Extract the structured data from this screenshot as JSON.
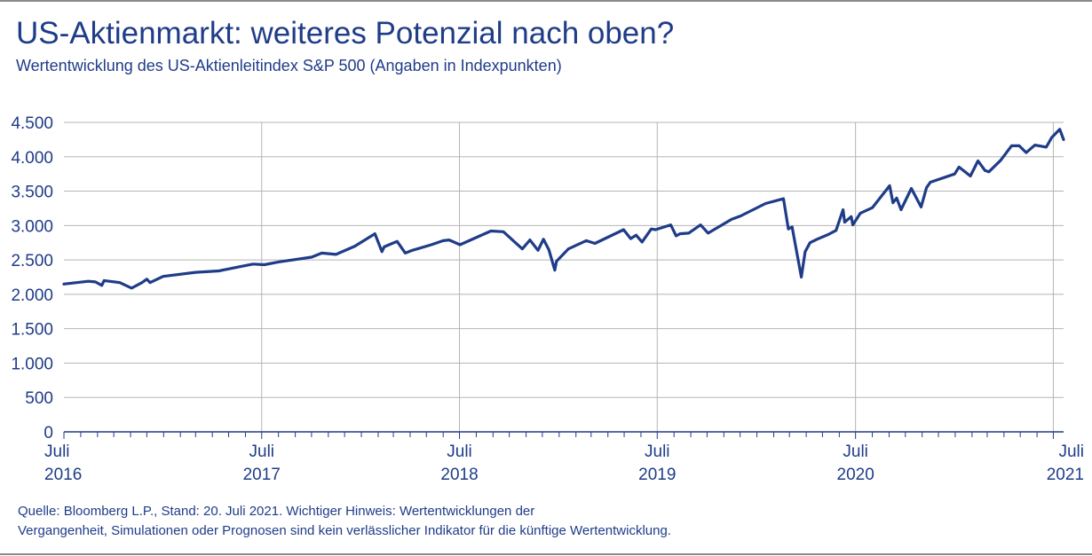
{
  "header": {
    "title": "US-Aktienmarkt: weiteres Potenzial nach oben?",
    "subtitle": "Wertentwicklung des US-Aktienleitindex S&P 500 (Angaben in Indexpunkten)"
  },
  "footer": {
    "line1": "Quelle: Bloomberg L.P., Stand: 20. Juli 2021. Wichtiger Hinweis: Wertentwicklungen der",
    "line2": "Vergangenheit, Simulationen oder Prognosen sind kein verlässlicher Indikator für die künftige Wertentwicklung."
  },
  "colors": {
    "line": "#1f3c88",
    "text": "#1f3c88",
    "grid": "#b5b5b5",
    "axis": "#1f3c88"
  },
  "chart_data": {
    "type": "line",
    "title": "US-Aktienmarkt: weiteres Potenzial nach oben?",
    "subtitle": "Wertentwicklung des US-Aktienleitindex S&P 500 (Angaben in Indexpunkten)",
    "xlabel": "",
    "ylabel": "",
    "ylim": [
      0,
      4500
    ],
    "xlim": [
      "2016-07-01",
      "2021-07-20"
    ],
    "yticks": [
      0,
      500,
      1000,
      1500,
      2000,
      2500,
      3000,
      3500,
      4000,
      4500
    ],
    "ytick_labels": [
      "0",
      "500",
      "1.000",
      "1.500",
      "2.000",
      "2.500",
      "3.000",
      "3.500",
      "4.000",
      "4.500"
    ],
    "xtick_labels": [
      {
        "date": "2016-07-01",
        "line1": "Juli",
        "line2": "2016"
      },
      {
        "date": "2017-07-01",
        "line1": "Juli",
        "line2": "2017"
      },
      {
        "date": "2018-07-01",
        "line1": "Juli",
        "line2": "2018"
      },
      {
        "date": "2019-07-01",
        "line1": "Juli",
        "line2": "2019"
      },
      {
        "date": "2020-07-01",
        "line1": "Juli",
        "line2": "2020"
      },
      {
        "date": "2021-07-01",
        "line1": "Juli",
        "line2": "2021"
      }
    ],
    "grid": {
      "vertical": true,
      "horizontal": true
    },
    "legend": "none",
    "series": [
      {
        "name": "",
        "x": [
          "2016-07-01",
          "2016-08-15",
          "2016-08-28",
          "2016-09-09",
          "2016-09-13",
          "2016-10-12",
          "2016-11-03",
          "2016-11-22",
          "2016-12-01",
          "2016-12-07",
          "2016-12-31",
          "2017-03-01",
          "2017-04-13",
          "2017-05-20",
          "2017-06-15",
          "2017-07-06",
          "2017-08-01",
          "2017-10-01",
          "2017-10-20",
          "2017-11-15",
          "2017-12-20",
          "2018-01-26",
          "2018-02-08",
          "2018-02-12",
          "2018-02-27",
          "2018-03-08",
          "2018-03-23",
          "2018-04-05",
          "2018-05-10",
          "2018-06-01",
          "2018-06-12",
          "2018-07-02",
          "2018-08-28",
          "2018-09-20",
          "2018-10-25",
          "2018-11-08",
          "2018-11-23",
          "2018-12-03",
          "2018-12-13",
          "2018-12-24",
          "2018-12-27",
          "2019-01-18",
          "2019-02-20",
          "2019-03-08",
          "2019-04-30",
          "2019-05-13",
          "2019-05-23",
          "2019-06-03",
          "2019-06-20",
          "2019-06-28",
          "2019-07-26",
          "2019-08-05",
          "2019-08-12",
          "2019-08-28",
          "2019-09-19",
          "2019-10-03",
          "2019-11-15",
          "2019-12-02",
          "2020-01-17",
          "2020-02-19",
          "2020-02-28",
          "2020-03-06",
          "2020-03-23",
          "2020-03-30",
          "2020-04-08",
          "2020-04-21",
          "2020-05-12",
          "2020-05-26",
          "2020-06-08",
          "2020-06-11",
          "2020-06-23",
          "2020-06-26",
          "2020-07-10",
          "2020-08-01",
          "2020-09-02",
          "2020-09-08",
          "2020-09-15",
          "2020-09-23",
          "2020-10-12",
          "2020-10-30",
          "2020-11-09",
          "2020-11-16",
          "2020-12-31",
          "2021-01-08",
          "2021-01-29",
          "2021-02-12",
          "2021-02-25",
          "2021-03-04",
          "2021-03-26",
          "2021-04-15",
          "2021-04-29",
          "2021-05-12",
          "2021-05-28",
          "2021-06-18",
          "2021-06-28",
          "2021-07-13",
          "2021-07-20"
        ],
        "values": [
          2150,
          2190,
          2180,
          2130,
          2200,
          2170,
          2090,
          2170,
          2220,
          2170,
          2260,
          2320,
          2340,
          2400,
          2440,
          2430,
          2470,
          2540,
          2600,
          2580,
          2700,
          2880,
          2620,
          2690,
          2740,
          2770,
          2600,
          2640,
          2720,
          2780,
          2790,
          2720,
          2920,
          2910,
          2660,
          2790,
          2640,
          2800,
          2650,
          2350,
          2480,
          2660,
          2780,
          2740,
          2940,
          2810,
          2860,
          2760,
          2950,
          2940,
          3010,
          2850,
          2880,
          2890,
          3010,
          2890,
          3090,
          3140,
          3320,
          3390,
          2950,
          2980,
          2250,
          2620,
          2750,
          2800,
          2870,
          2930,
          3230,
          3050,
          3130,
          3010,
          3180,
          3260,
          3580,
          3330,
          3400,
          3230,
          3540,
          3270,
          3550,
          3630,
          3750,
          3850,
          3720,
          3940,
          3800,
          3780,
          3950,
          4160,
          4160,
          4060,
          4170,
          4140,
          4280,
          4400,
          4250
        ]
      }
    ]
  }
}
